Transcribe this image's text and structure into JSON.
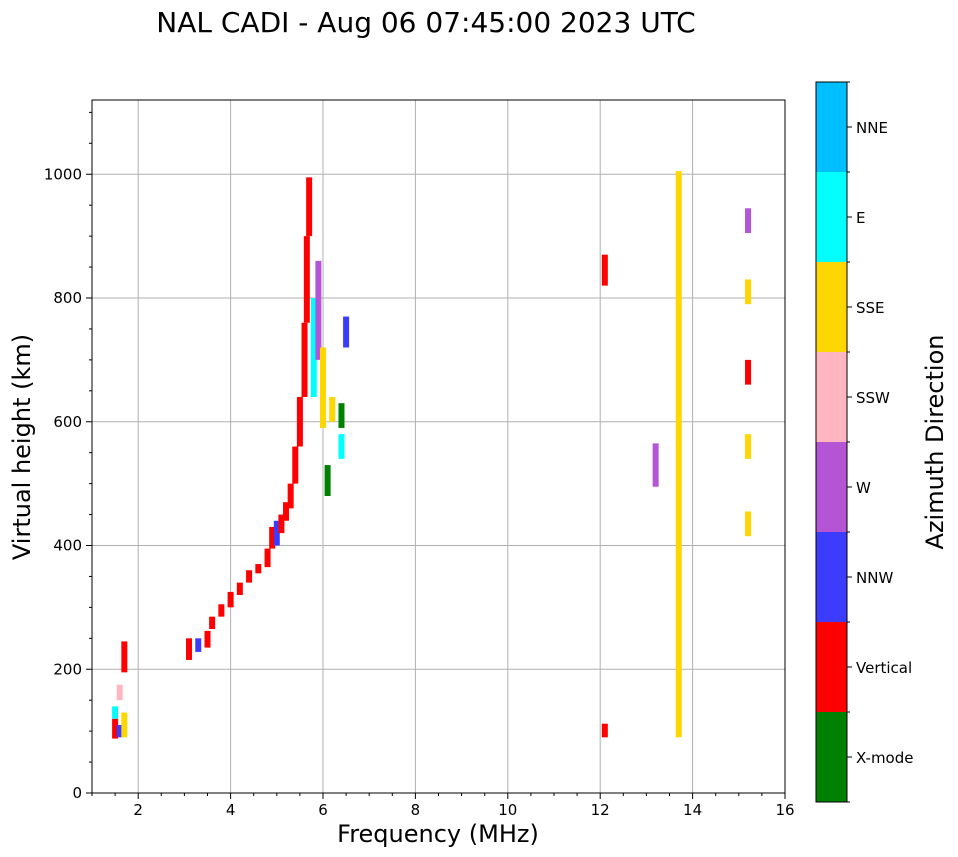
{
  "chart_data": {
    "type": "scatter",
    "title": "NAL CADI - Aug 06 07:45:00 2023 UTC",
    "xlabel": "Frequency (MHz)",
    "ylabel": "Virtual height (km)",
    "xlim": [
      1,
      16
    ],
    "ylim": [
      0,
      1120
    ],
    "xticks": [
      2,
      4,
      6,
      8,
      10,
      12,
      14,
      16
    ],
    "yticks": [
      0,
      200,
      400,
      600,
      800,
      1000
    ],
    "grid": true,
    "colorbar": {
      "label": "Azimuth Direction",
      "categories": [
        {
          "name": "X-mode",
          "color": "#008000"
        },
        {
          "name": "Vertical",
          "color": "#ff0000"
        },
        {
          "name": "NNW",
          "color": "#3c3cff"
        },
        {
          "name": "W",
          "color": "#b455d6"
        },
        {
          "name": "SSW",
          "color": "#ffb6c1"
        },
        {
          "name": "SSE",
          "color": "#ffd700"
        },
        {
          "name": "E",
          "color": "#00ffff"
        },
        {
          "name": "NNE",
          "color": "#00bfff"
        }
      ]
    },
    "echo_columns": [
      [
        1.5,
        88,
        120,
        "Vertical"
      ],
      [
        1.5,
        120,
        140,
        "E"
      ],
      [
        1.6,
        90,
        110,
        "NNW"
      ],
      [
        1.6,
        150,
        175,
        "SSW"
      ],
      [
        1.7,
        195,
        245,
        "Vertical"
      ],
      [
        1.7,
        90,
        130,
        "SSE"
      ],
      [
        3.1,
        215,
        250,
        "Vertical"
      ],
      [
        3.3,
        228,
        250,
        "NNW"
      ],
      [
        3.5,
        235,
        262,
        "Vertical"
      ],
      [
        3.6,
        265,
        285,
        "Vertical"
      ],
      [
        3.8,
        285,
        305,
        "Vertical"
      ],
      [
        4.0,
        300,
        325,
        "Vertical"
      ],
      [
        4.2,
        320,
        340,
        "Vertical"
      ],
      [
        4.4,
        340,
        360,
        "Vertical"
      ],
      [
        4.6,
        355,
        370,
        "Vertical"
      ],
      [
        4.8,
        365,
        395,
        "Vertical"
      ],
      [
        4.9,
        395,
        430,
        "Vertical"
      ],
      [
        5.0,
        400,
        440,
        "NNW"
      ],
      [
        5.1,
        420,
        450,
        "Vertical"
      ],
      [
        5.2,
        440,
        470,
        "Vertical"
      ],
      [
        5.3,
        460,
        500,
        "Vertical"
      ],
      [
        5.4,
        500,
        560,
        "Vertical"
      ],
      [
        5.5,
        560,
        640,
        "Vertical"
      ],
      [
        5.6,
        640,
        760,
        "Vertical"
      ],
      [
        5.65,
        760,
        900,
        "Vertical"
      ],
      [
        5.7,
        900,
        995,
        "Vertical"
      ],
      [
        5.8,
        640,
        800,
        "E"
      ],
      [
        5.9,
        700,
        860,
        "W"
      ],
      [
        6.1,
        480,
        530,
        "X-mode"
      ],
      [
        6.0,
        590,
        720,
        "SSE"
      ],
      [
        6.2,
        600,
        640,
        "SSE"
      ],
      [
        6.4,
        540,
        580,
        "E"
      ],
      [
        6.4,
        590,
        630,
        "X-mode"
      ],
      [
        6.5,
        720,
        770,
        "NNW"
      ],
      [
        12.1,
        820,
        870,
        "Vertical"
      ],
      [
        12.1,
        90,
        112,
        "Vertical"
      ],
      [
        13.2,
        495,
        565,
        "W"
      ],
      [
        13.7,
        90,
        1005,
        "SSE"
      ],
      [
        15.2,
        790,
        830,
        "SSE"
      ],
      [
        15.2,
        905,
        945,
        "W"
      ],
      [
        15.2,
        660,
        700,
        "Vertical"
      ],
      [
        15.2,
        540,
        580,
        "SSE"
      ],
      [
        15.2,
        415,
        455,
        "SSE"
      ]
    ]
  }
}
